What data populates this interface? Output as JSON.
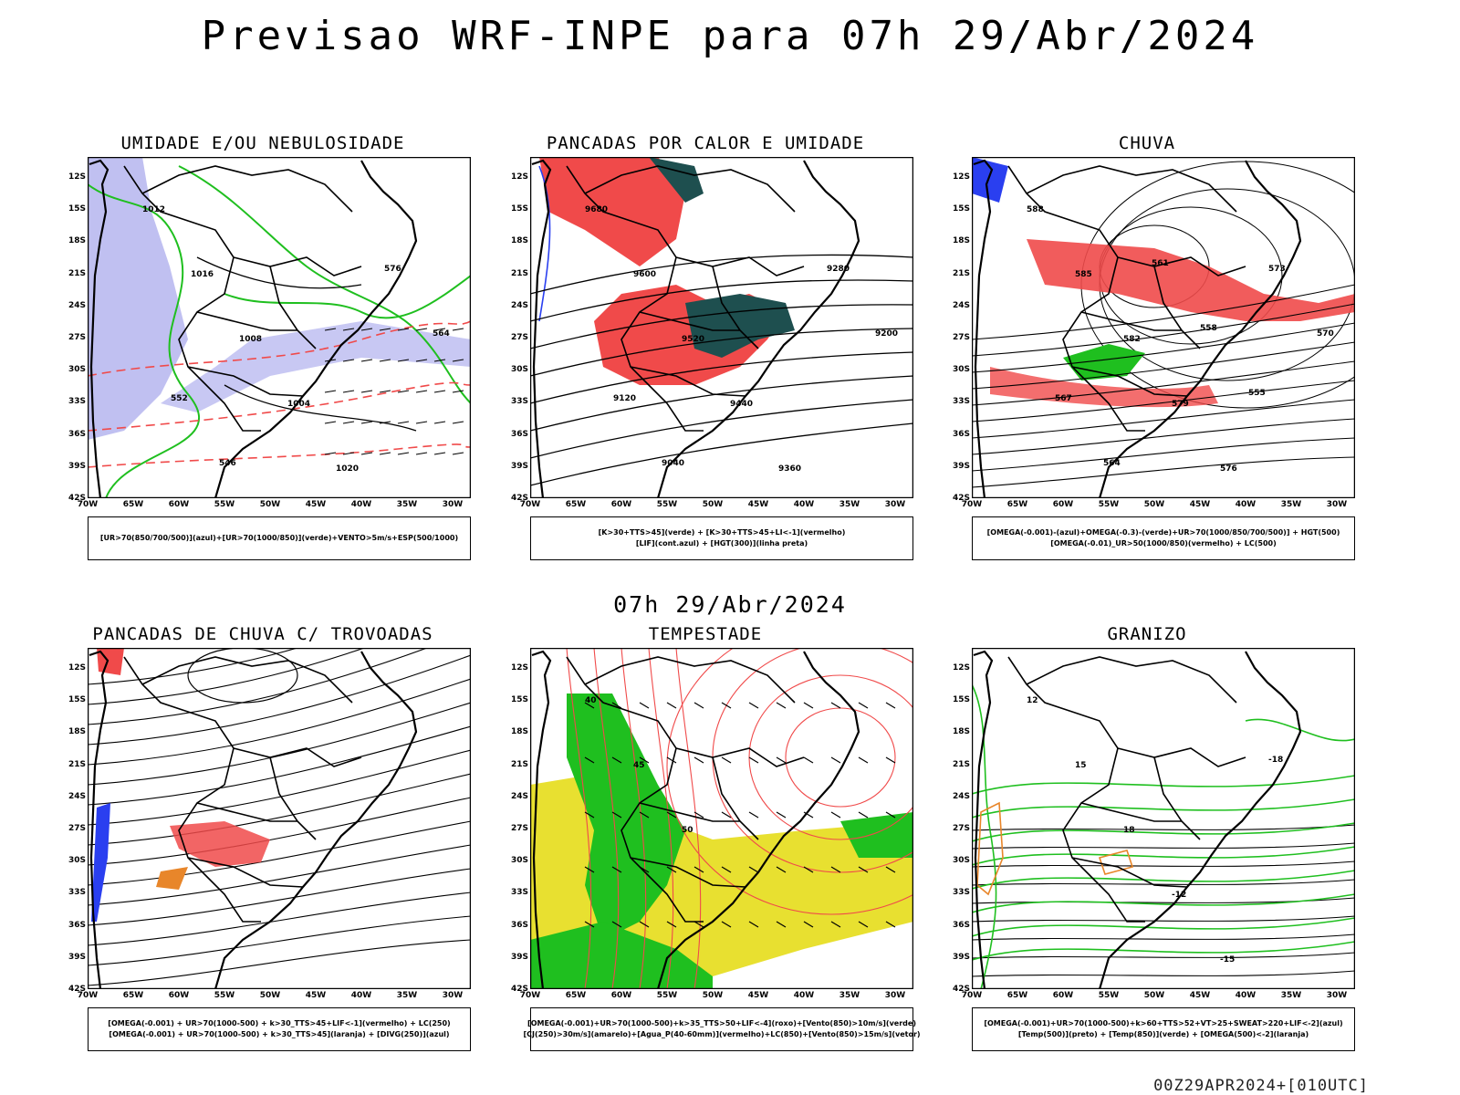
{
  "title": "Previsao WRF-INPE  para 07h 29/Abr/2024",
  "subtitle": "07h 29/Abr/2024",
  "footer": "00Z29APR2024+[010UTC]",
  "axes": {
    "lat_labels": [
      "12S",
      "15S",
      "18S",
      "21S",
      "24S",
      "27S",
      "30S",
      "33S",
      "36S",
      "39S",
      "42S"
    ],
    "lon_labels": [
      "70W",
      "65W",
      "60W",
      "55W",
      "50W",
      "45W",
      "40W",
      "35W",
      "30W"
    ]
  },
  "colors": {
    "red": "#f04a4a",
    "green": "#1fbf1f",
    "dark_green": "#1e4f4f",
    "blue": "#2a3ff0",
    "lavender": "#b0b0ee",
    "yellow": "#e8e030",
    "orange": "#e8862a"
  },
  "panels": [
    {
      "title": "UMIDADE E/OU NEBULOSIDADE",
      "legend": [
        "[UR>70(850/700/500)](azul)+[UR>70(1000/850)](verde)+VENTO>5m/s+ESP(500/1000)"
      ],
      "contour_labels": [
        "1012",
        "1016",
        "1008",
        "1004",
        "1020",
        "576",
        "564",
        "552",
        "546"
      ]
    },
    {
      "title": "PANCADAS POR CALOR E UMIDADE",
      "legend": [
        "[K>30+TTS>45](verde) + [K>30+TTS>45+LI<-1](vermelho)",
        "[LIF](cont.azul) + [HGT(300)](linha preta)"
      ],
      "contour_labels": [
        "9680",
        "9600",
        "9520",
        "9440",
        "9360",
        "9280",
        "9200",
        "9120",
        "9040"
      ]
    },
    {
      "title": "CHUVA",
      "legend": [
        "[OMEGA(-0.001)-(azul)+OMEGA(-0.3)-(verde)+UR>70(1000/850/700/500)] + HGT(500)",
        "[OMEGA(-0.01)_UR>50(1000/850)(vermelho) + LC(500)"
      ],
      "contour_labels": [
        "588",
        "585",
        "582",
        "579",
        "576",
        "573",
        "570",
        "567",
        "564",
        "561",
        "558",
        "555"
      ]
    },
    {
      "title": "PANCADAS DE CHUVA C/ TROVOADAS",
      "legend": [
        "[OMEGA(-0.001) + UR>70(1000-500) + k>30_TTS>45+LIF<-1](vermelho) + LC(250)",
        "[OMEGA(-0.001) + UR>70(1000-500) + k>30_TTS>45](laranja) + [DIVG(250)](azul)"
      ],
      "contour_labels": []
    },
    {
      "title": "TEMPESTADE",
      "legend": [
        "[OMEGA(-0.001)+UR>70(1000-500)+k>35_TTS>50+LIF<-4](roxo)+[Vento(850)>10m/s](verde)",
        "[CJ(250)>30m/s](amarelo)+[Agua_P(40-60mm)](vermelho)+LC(850)+[Vento(850)>15m/s](vetor)"
      ],
      "contour_labels": [
        "40",
        "45",
        "50"
      ]
    },
    {
      "title": "GRANIZO",
      "legend": [
        "[OMEGA(-0.001)+UR>70(1000-500)+k>60+TTS>52+VT>25+SWEAT>220+LIF<-2](azul)",
        "[Temp(500)](preto) + [Temp(850)](verde) + [OMEGA(500)<-2](laranja)"
      ],
      "contour_labels": [
        "12",
        "15",
        "18",
        "-12",
        "-15",
        "-18"
      ]
    }
  ]
}
